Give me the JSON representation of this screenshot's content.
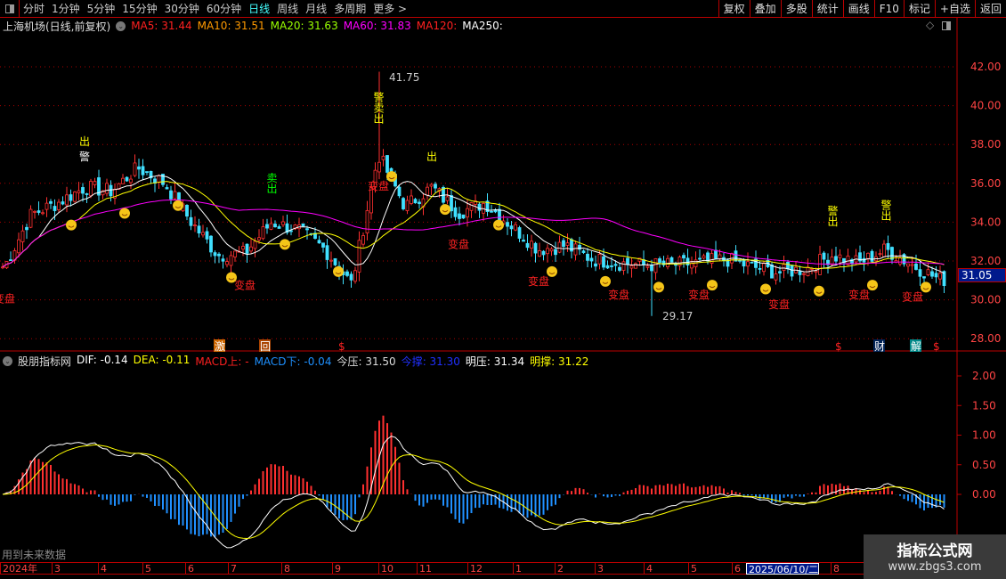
{
  "toolbar": {
    "periods": [
      "分时",
      "1分钟",
      "5分钟",
      "15分钟",
      "30分钟",
      "60分钟",
      "日线",
      "周线",
      "月线",
      "多周期",
      "更多 >"
    ],
    "active": "日线",
    "right_buttons": [
      "复权",
      "叠加",
      "多股",
      "统计",
      "画线",
      "F10",
      "标记",
      "+自选",
      "返回"
    ]
  },
  "legend": {
    "title": "上海机场(日线,前复权)",
    "items": [
      {
        "label": "MA5: 31.44",
        "color": "#ff2020"
      },
      {
        "label": "MA10: 31.51",
        "color": "#ff9900"
      },
      {
        "label": "MA20: 31.63",
        "color": "#99ff00"
      },
      {
        "label": "MA60: 31.83",
        "color": "#ff00ff"
      },
      {
        "label": "MA120:",
        "color": "#ff2020"
      },
      {
        "label": "MA250:",
        "color": "#ffffff"
      }
    ]
  },
  "indicator": {
    "title": "股朋指标网",
    "items": [
      {
        "label": "DIF: -0.14",
        "color": "#ffffff"
      },
      {
        "label": "DEA: -0.11",
        "color": "#ffff00"
      },
      {
        "label": "MACD上: -",
        "color": "#ff2020"
      },
      {
        "label": "MACD下: -0.04",
        "color": "#1e90ff"
      },
      {
        "label": "今压: 31.50",
        "color": "#dddddd"
      },
      {
        "label": "今撑: 31.30",
        "color": "#2030ff"
      },
      {
        "label": "明压: 31.34",
        "color": "#ffffff"
      },
      {
        "label": "明撑: 31.22",
        "color": "#ffff00"
      }
    ]
  },
  "colors": {
    "up": "#ff3030",
    "down": "#40e0ff",
    "grid": "#b00000"
  },
  "chart_data": [
    {
      "type": "candlestick",
      "title": "上海机场(日线,前复权)",
      "ylim": [
        27.5,
        43
      ],
      "yticks": [
        "42.00",
        "40.00",
        "38.00",
        "36.00",
        "34.00",
        "32.00",
        "30.00",
        "28.00"
      ],
      "weekly_close": [
        31.7,
        34.4,
        35.0,
        35.8,
        35.6,
        36.8,
        36.0,
        34.0,
        32.3,
        32.4,
        34.0,
        33.6,
        32.6,
        30.8,
        37.5,
        34.8,
        35.8,
        34.5,
        35.0,
        33.8,
        32.6,
        32.8,
        32.1,
        31.9,
        31.8,
        31.8,
        31.9,
        32.1,
        31.7,
        31.4,
        31.6,
        32.3,
        31.9,
        32.6,
        31.8,
        31.05
      ],
      "high_label": "41.75",
      "low_label": "29.17",
      "last_price": "31.05",
      "signals": [
        {
          "week": 3,
          "text": "警",
          "color": "#fff"
        },
        {
          "week": 3,
          "text": "出",
          "color": "#ff0"
        },
        {
          "week": 10,
          "text": "卖出",
          "color": "#0f0"
        },
        {
          "week": 14,
          "text": "警卖出",
          "color": "#ff0"
        },
        {
          "week": 16,
          "text": "出",
          "color": "#ff0"
        },
        {
          "week": 31,
          "text": "警出",
          "color": "#ff0"
        },
        {
          "week": 33,
          "text": "警出",
          "color": "#ff0"
        },
        {
          "week": 0,
          "text": "变盘",
          "color": "#f22"
        },
        {
          "week": 9,
          "text": "变盘",
          "color": "#f22"
        },
        {
          "week": 14,
          "text": "变盘",
          "color": "#f22"
        },
        {
          "week": 17,
          "text": "变盘",
          "color": "#f22"
        },
        {
          "week": 20,
          "text": "变盘",
          "color": "#f22"
        },
        {
          "week": 23,
          "text": "变盘",
          "color": "#f22"
        },
        {
          "week": 26,
          "text": "变盘",
          "color": "#f22"
        },
        {
          "week": 29,
          "text": "变盘",
          "color": "#f22"
        },
        {
          "week": 32,
          "text": "变盘",
          "color": "#f22"
        },
        {
          "week": 34,
          "text": "变盘",
          "color": "#f22"
        }
      ]
    },
    {
      "type": "macd",
      "ylim": [
        -1.2,
        2.3
      ],
      "yticks": [
        "2.00",
        "1.50",
        "1.00",
        "0.50",
        "0.00"
      ]
    }
  ],
  "bottom_markers": [
    "激",
    "回",
    "$",
    "$",
    "财",
    "解",
    "$"
  ],
  "date_axis": [
    "2024年",
    "3",
    "4",
    "5",
    "6",
    "7",
    "8",
    "9",
    "10",
    "11",
    "12",
    "1",
    "2",
    "3",
    "4",
    "5",
    "6",
    "2025/06/10/二",
    "8"
  ],
  "future_note": "用到未来数据",
  "watermark": {
    "line1": "指标公式网",
    "line2": "www.zbgs3.com"
  }
}
